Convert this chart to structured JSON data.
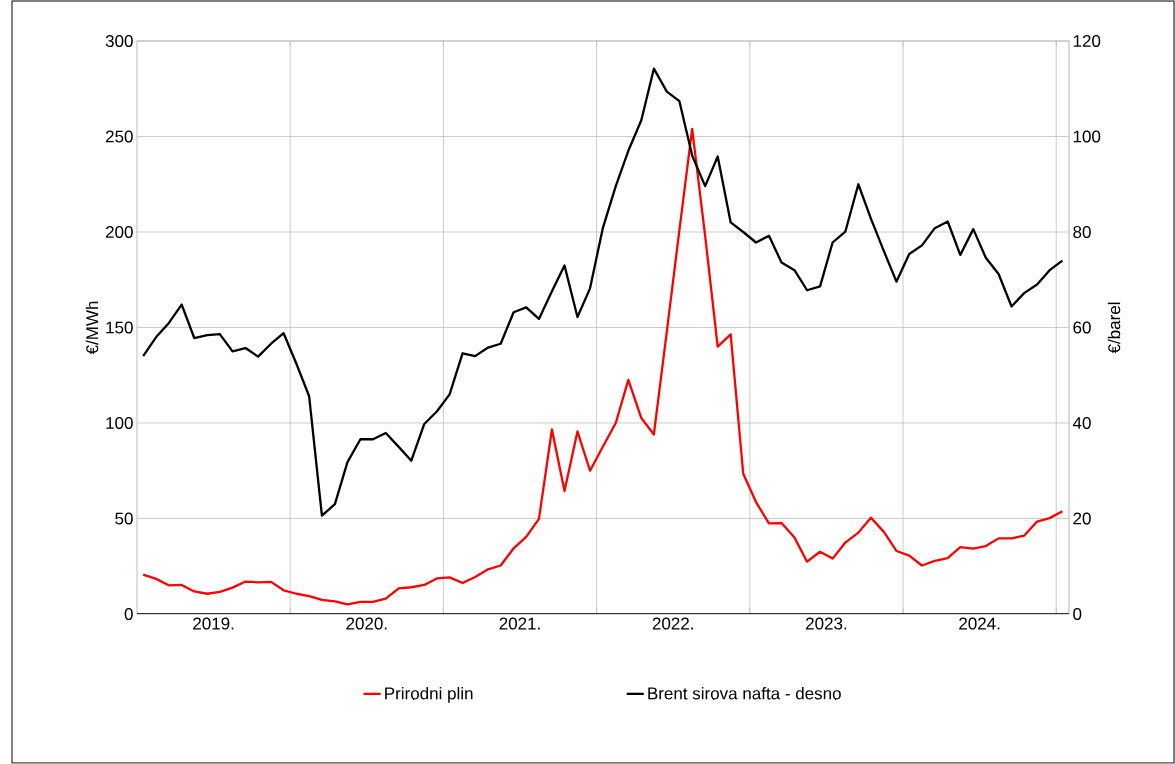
{
  "chart_data": {
    "type": "line",
    "ylabel": "€/MWh",
    "y2label": "€/barel",
    "x": [
      "2019-01-16",
      "2019-02-15",
      "2019-03-16",
      "2019-04-16",
      "2019-05-16",
      "2019-06-16",
      "2019-07-16",
      "2019-08-16",
      "2019-09-16",
      "2019-10-16",
      "2019-11-16",
      "2019-12-16",
      "2020-01-16",
      "2020-02-15",
      "2020-03-16",
      "2020-04-16",
      "2020-05-16",
      "2020-06-16",
      "2020-07-16",
      "2020-08-16",
      "2020-09-16",
      "2020-10-16",
      "2020-11-16",
      "2020-12-16",
      "2021-01-16",
      "2021-02-15",
      "2021-03-16",
      "2021-04-16",
      "2021-05-16",
      "2021-06-16",
      "2021-07-16",
      "2021-08-16",
      "2021-09-16",
      "2021-10-16",
      "2021-11-16",
      "2021-12-16",
      "2022-01-16",
      "2022-02-15",
      "2022-03-16",
      "2022-04-16",
      "2022-05-16",
      "2022-06-16",
      "2022-07-16",
      "2022-08-16",
      "2022-09-16",
      "2022-10-16",
      "2022-11-16",
      "2022-12-16",
      "2023-01-16",
      "2023-02-15",
      "2023-03-16",
      "2023-04-16",
      "2023-05-16",
      "2023-06-16",
      "2023-07-16",
      "2023-08-16",
      "2023-09-16",
      "2023-10-16",
      "2023-11-16",
      "2023-12-16",
      "2024-01-16",
      "2024-02-15",
      "2024-03-16",
      "2024-04-16",
      "2024-05-16",
      "2024-06-16",
      "2024-07-16",
      "2024-08-16",
      "2024-09-16",
      "2024-10-16",
      "2024-11-16",
      "2024-12-16",
      "2025-01-16"
    ],
    "series": [
      {
        "name": "Prirodni plin",
        "color": "#ff0000",
        "values": [
          20.6,
          18.4,
          15,
          15.2,
          11.8,
          10.6,
          11.6,
          13.8,
          17,
          16.6,
          16.8,
          12.4,
          10.6,
          9.4,
          7.4,
          6.6,
          5,
          6.4,
          6.4,
          8,
          13.4,
          14,
          15.2,
          18.6,
          19.2,
          16.2,
          19.4,
          23.4,
          25.4,
          34.4,
          40.4,
          49.8,
          96.6,
          64.4,
          95.6,
          75,
          87.6,
          100,
          122.6,
          102.6,
          94,
          148,
          201,
          254,
          198,
          140,
          146.4,
          73.4,
          58.6,
          47.4,
          47.6,
          40,
          27.4,
          32.6,
          29,
          37.4,
          42.6,
          50.4,
          43,
          33,
          30.6,
          25.4,
          27.8,
          29.2,
          35,
          34.2,
          35.6,
          39.6,
          39.6,
          41,
          48.4,
          50.2,
          53.8
        ]
      },
      {
        "name": "Brent sirova nafta - desno",
        "color": "#000000",
        "axis": "y2",
        "values": [
          54,
          58,
          60.9,
          64.8,
          57.8,
          58.4,
          58.6,
          55,
          55.7,
          53.9,
          56.6,
          58.8,
          52.4,
          45.6,
          20.6,
          23,
          31.8,
          36.6,
          36.6,
          37.9,
          35,
          32.1,
          39.8,
          42.4,
          46,
          54.6,
          54,
          55.8,
          56.6,
          63.2,
          64.2,
          61.8,
          67.6,
          73,
          62.2,
          68.2,
          80.8,
          89.6,
          97,
          103.4,
          114.2,
          109.4,
          107.4,
          96,
          89.6,
          95.8,
          82,
          80,
          77.8,
          79.2,
          73.6,
          72,
          67.8,
          68.6,
          77.8,
          80.1,
          90,
          82.8,
          76,
          69.6,
          75.4,
          77.2,
          80.8,
          82.2,
          75.2,
          80.6,
          74.6,
          71.2,
          64.4,
          67.2,
          69,
          72,
          74
        ]
      }
    ],
    "xlim": [
      "2019-01-01",
      "2025-02-01"
    ],
    "xticks": [
      {
        "value": "2019-07-01",
        "label": "2019."
      },
      {
        "value": "2020-07-01",
        "label": "2020."
      },
      {
        "value": "2021-07-01",
        "label": "2021."
      },
      {
        "value": "2022-07-01",
        "label": "2022."
      },
      {
        "value": "2023-07-01",
        "label": "2023."
      },
      {
        "value": "2024-07-01",
        "label": "2024."
      },
      {
        "value": "2020-01-01",
        "label": null
      },
      {
        "value": "2021-01-01",
        "label": null
      },
      {
        "value": "2022-01-01",
        "label": null
      },
      {
        "value": "2023-01-01",
        "label": null
      },
      {
        "value": "2024-01-01",
        "label": null
      },
      {
        "value": "2025-01-01",
        "label": null
      }
    ],
    "ylim": [
      0,
      300
    ],
    "yticks": [
      0,
      50,
      100,
      150,
      200,
      250,
      300
    ],
    "y2lim": [
      0,
      120
    ],
    "y2ticks": [
      0,
      20,
      40,
      60,
      80,
      100,
      120
    ],
    "grid": true,
    "legend": "bottom"
  }
}
